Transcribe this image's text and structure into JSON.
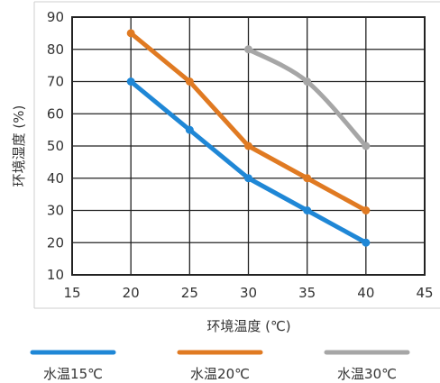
{
  "chart_data": {
    "type": "line",
    "xlabel": "环境温度 (℃)",
    "ylabel": "环境湿度 (%)",
    "xlim": [
      15,
      45
    ],
    "ylim": [
      10,
      90
    ],
    "xticks": [
      "15",
      "20",
      "25",
      "30",
      "35",
      "40",
      "45"
    ],
    "yticks": [
      "10",
      "20",
      "30",
      "40",
      "50",
      "60",
      "70",
      "80",
      "90"
    ],
    "grid": true,
    "legend_position": "bottom",
    "series": [
      {
        "name": "水温15℃",
        "color": "#1f87d6",
        "x": [
          20,
          25,
          30,
          35,
          40
        ],
        "y": [
          70,
          55,
          40,
          30,
          20
        ],
        "smooth": false
      },
      {
        "name": "水温20℃",
        "color": "#e07a22",
        "x": [
          20,
          25,
          30,
          35,
          40
        ],
        "y": [
          85,
          70,
          50,
          40,
          30
        ],
        "smooth": false
      },
      {
        "name": "水温30℃",
        "color": "#a6a6a6",
        "x": [
          30,
          35,
          40
        ],
        "y": [
          80,
          70,
          50
        ],
        "smooth": true
      }
    ]
  }
}
